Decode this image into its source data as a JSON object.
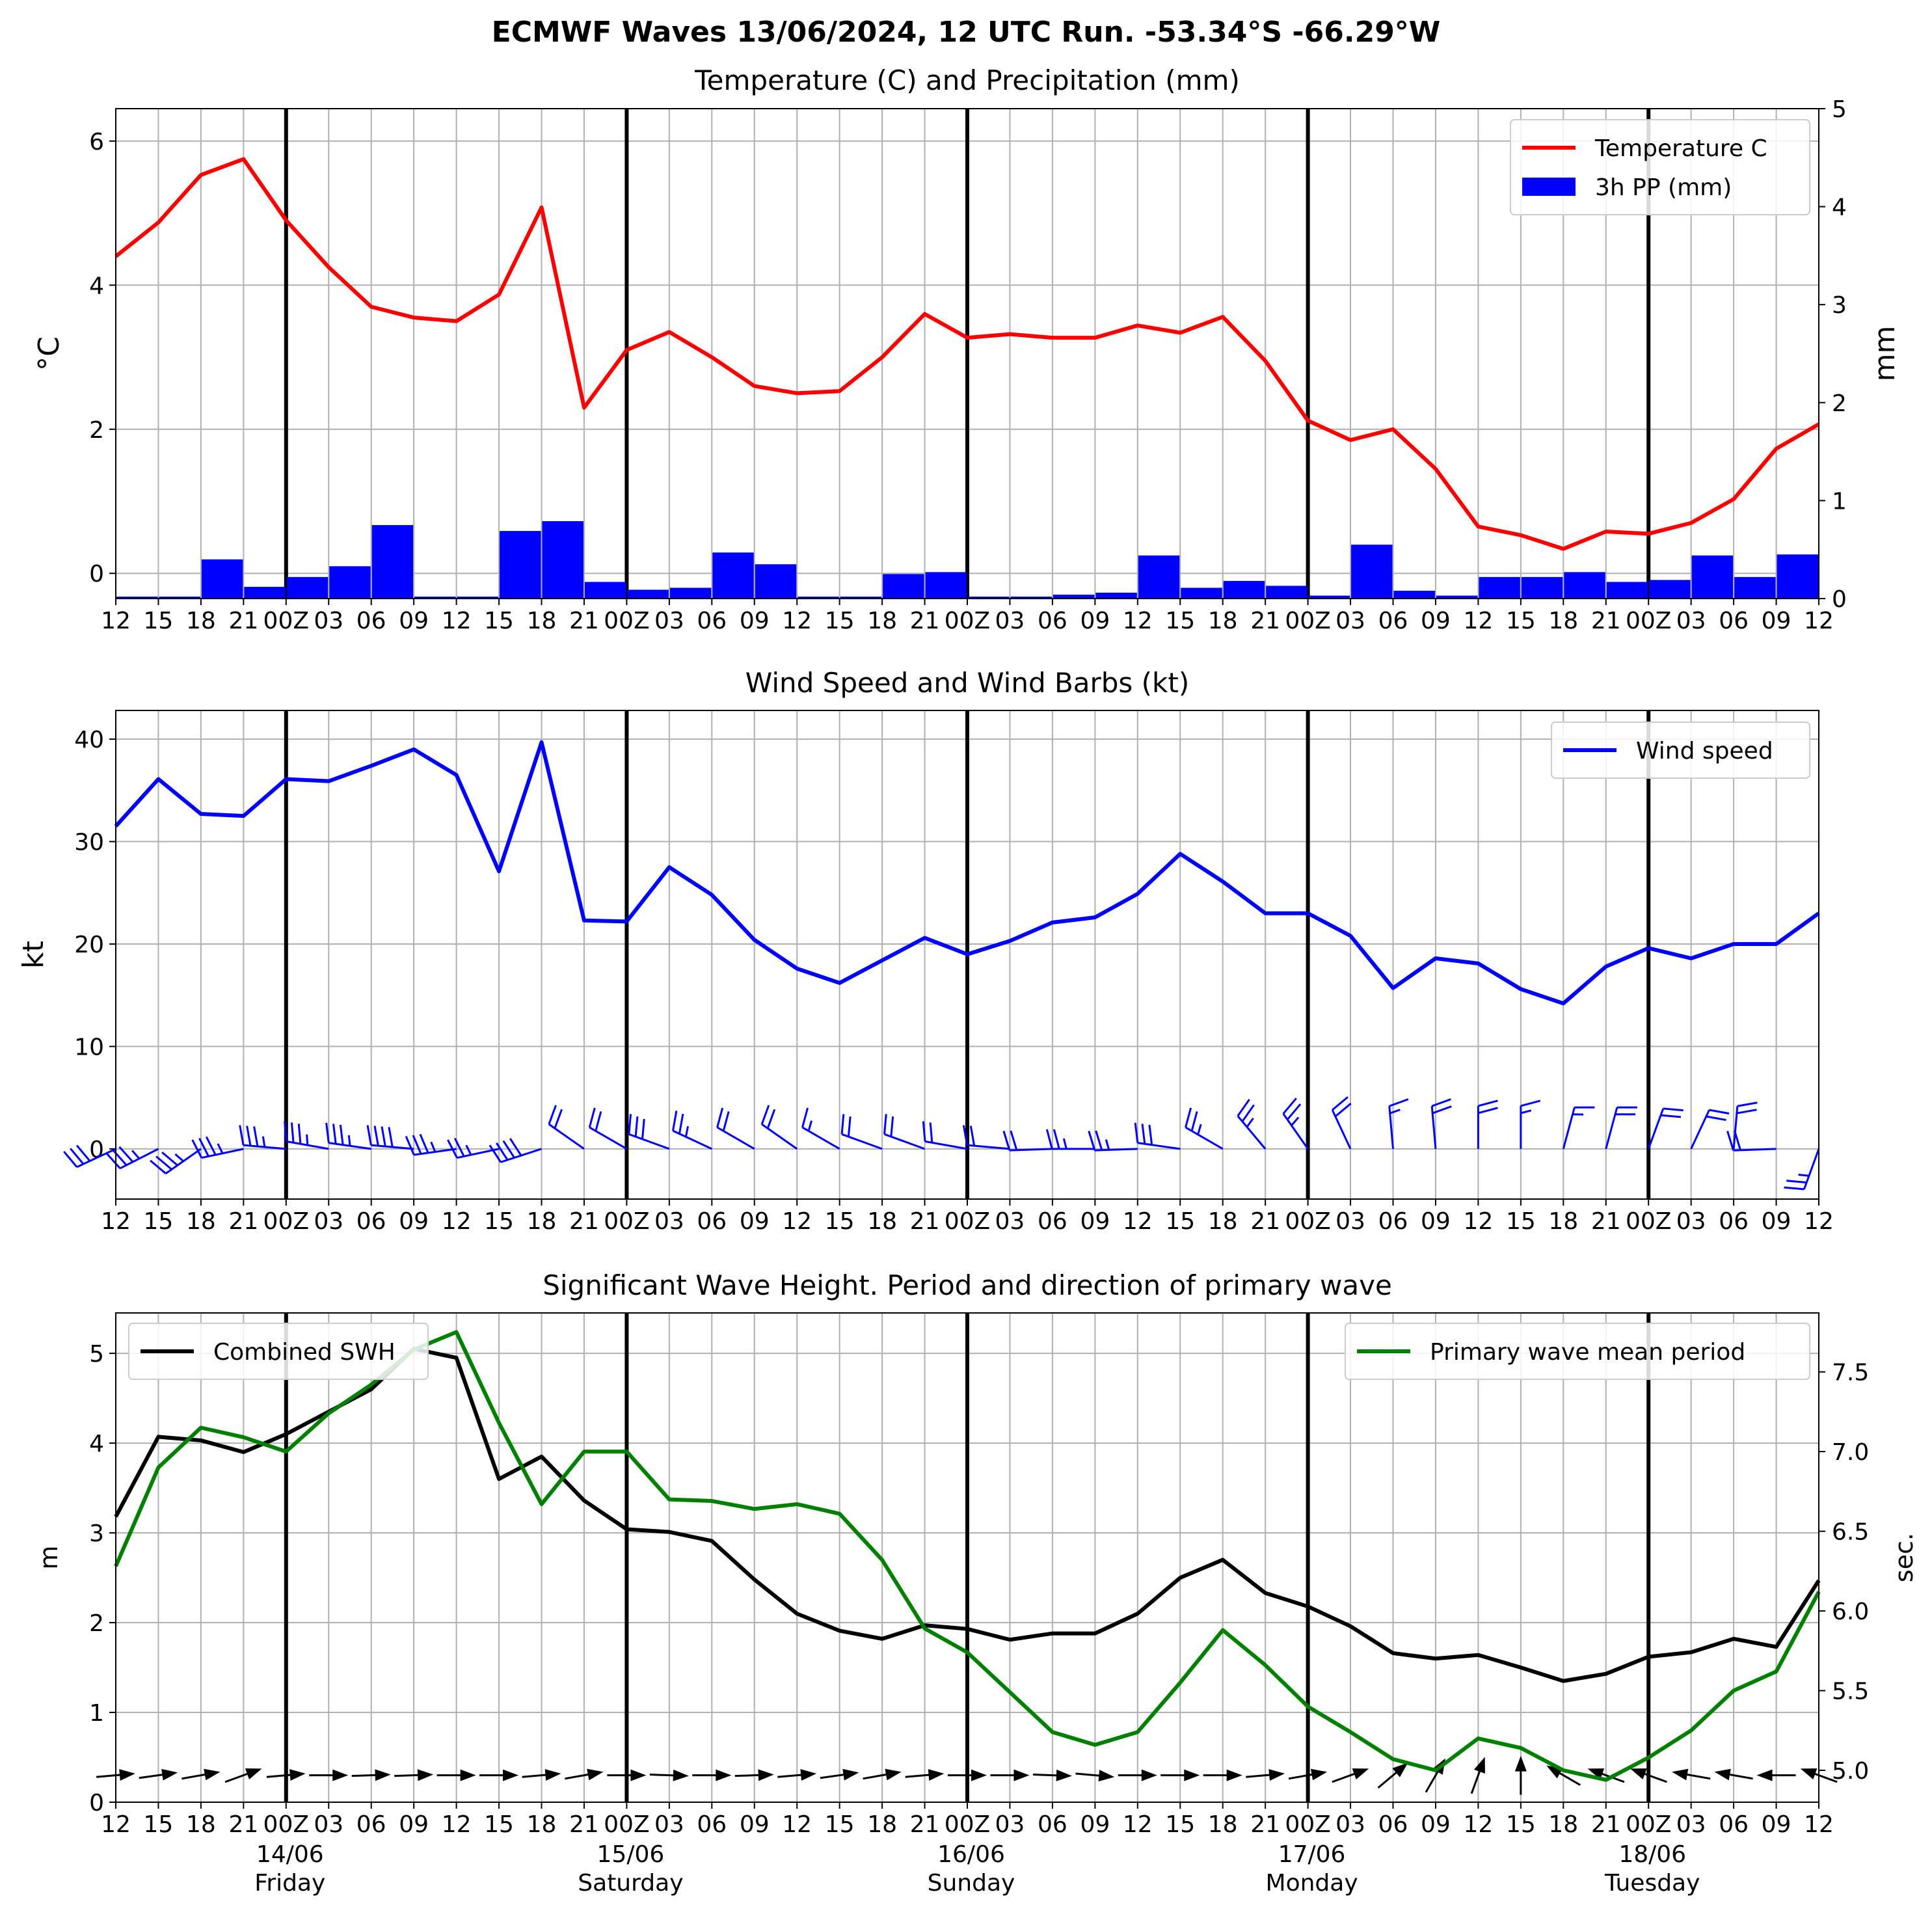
{
  "suptitle": "ECMWF Waves 13/06/2024, 12 UTC Run. -53.34°S -66.29°W",
  "colors": {
    "temperature": "#ff0000",
    "precip": "#0000ff",
    "wind": "#0000ff",
    "swh": "#000000",
    "period": "#008000",
    "grid": "#b0b0b0"
  },
  "time_ticks": [
    "12",
    "15",
    "18",
    "21",
    "00Z",
    "03",
    "06",
    "09",
    "12",
    "15",
    "18",
    "21",
    "00Z",
    "03",
    "06",
    "09",
    "12",
    "15",
    "18",
    "21",
    "00Z",
    "03",
    "06",
    "09",
    "12",
    "15",
    "18",
    "21",
    "00Z",
    "03",
    "06",
    "09",
    "12",
    "15",
    "18",
    "21",
    "00Z",
    "03",
    "06",
    "09",
    "12"
  ],
  "day_labels": [
    {
      "date": "14/06",
      "day": "Friday"
    },
    {
      "date": "15/06",
      "day": "Saturday"
    },
    {
      "date": "16/06",
      "day": "Sunday"
    },
    {
      "date": "17/06",
      "day": "Monday"
    },
    {
      "date": "18/06",
      "day": "Tuesday"
    }
  ],
  "chart_data": [
    {
      "type": "line",
      "title": "Temperature (C) and Precipitation (mm)",
      "ylabel": "°C",
      "ylabel_right": "mm",
      "ylim": [
        -0.35,
        6.45
      ],
      "ylim_right": [
        0,
        5
      ],
      "yticks": [
        0,
        2,
        4,
        6
      ],
      "yticks_right": [
        0,
        1,
        2,
        3,
        4,
        5
      ],
      "legend": "top-right",
      "series": [
        {
          "name": "Temperature C",
          "kind": "line",
          "axis": "left",
          "values": [
            4.4,
            4.87,
            5.53,
            5.75,
            4.9,
            4.25,
            3.7,
            3.55,
            3.5,
            3.87,
            5.08,
            2.3,
            3.1,
            3.35,
            3.0,
            2.6,
            2.5,
            2.53,
            3.0,
            3.6,
            3.27,
            3.32,
            3.27,
            3.27,
            3.44,
            3.34,
            3.56,
            2.95,
            2.12,
            1.85,
            2.0,
            1.45,
            0.65,
            0.53,
            0.34,
            0.58,
            0.55,
            0.7,
            1.03,
            1.73,
            2.07
          ]
        },
        {
          "name": "3h PP (mm)",
          "kind": "bar",
          "axis": "right",
          "values": [
            0.02,
            0.02,
            0.4,
            0.12,
            0.22,
            0.33,
            0.75,
            0.02,
            0.02,
            0.69,
            0.79,
            0.17,
            0.09,
            0.11,
            0.47,
            0.35,
            0.02,
            0.02,
            0.25,
            0.27,
            0.02,
            0.02,
            0.04,
            0.06,
            0.44,
            0.11,
            0.18,
            0.13,
            0.03,
            0.55,
            0.08,
            0.03,
            0.22,
            0.22,
            0.27,
            0.17,
            0.19,
            0.44,
            0.22,
            0.45
          ]
        }
      ]
    },
    {
      "type": "line",
      "title": "Wind Speed and Wind Barbs (kt)",
      "ylabel": "kt",
      "ylim": [
        -4.9,
        42.8
      ],
      "yticks": [
        0,
        10,
        20,
        30,
        40
      ],
      "legend": "top-right",
      "series": [
        {
          "name": "Wind speed",
          "values": [
            31.5,
            36.1,
            32.7,
            32.5,
            36.1,
            35.9,
            37.4,
            39.0,
            36.5,
            27.1,
            39.7,
            22.3,
            22.2,
            27.5,
            24.8,
            20.4,
            17.6,
            16.2,
            18.4,
            20.6,
            19.0,
            20.3,
            22.1,
            22.6,
            24.9,
            28.8,
            26.1,
            23.0,
            23.0,
            20.8,
            15.7,
            18.6,
            18.1,
            15.6,
            14.2,
            17.8,
            19.6,
            18.6,
            20.0,
            20.0,
            23.0
          ]
        }
      ],
      "barbs_from_deg": [
        245,
        243,
        235,
        258,
        275,
        280,
        278,
        275,
        262,
        258,
        252,
        305,
        300,
        290,
        295,
        300,
        305,
        300,
        290,
        290,
        280,
        275,
        268,
        270,
        268,
        278,
        300,
        320,
        325,
        335,
        355,
        355,
        0,
        360,
        15,
        15,
        20,
        25,
        5,
        268,
        200
      ]
    },
    {
      "type": "line",
      "title": "Significant Wave Height. Period and direction of primary wave",
      "ylabel": "m",
      "ylabel_right": "sec.",
      "ylim": [
        0,
        5.45
      ],
      "ylim_right": [
        4.8,
        7.87
      ],
      "yticks": [
        0,
        1,
        2,
        3,
        4,
        5
      ],
      "yticks_right": [
        5.0,
        5.5,
        6.0,
        6.5,
        7.0,
        7.5
      ],
      "series": [
        {
          "name": "Combined SWH",
          "axis": "left",
          "legend": "top-left",
          "values": [
            3.18,
            4.07,
            4.03,
            3.9,
            4.1,
            4.35,
            4.6,
            5.05,
            4.95,
            3.6,
            3.85,
            3.36,
            3.04,
            3.01,
            2.91,
            2.48,
            2.1,
            1.91,
            1.82,
            1.97,
            1.93,
            1.81,
            1.88,
            1.88,
            2.1,
            2.5,
            2.7,
            2.33,
            2.18,
            1.96,
            1.66,
            1.6,
            1.64,
            1.5,
            1.35,
            1.43,
            1.62,
            1.67,
            1.82,
            1.73,
            2.47
          ]
        },
        {
          "name": "Primary wave mean period",
          "axis": "right",
          "legend": "top-right",
          "values": [
            6.28,
            6.9,
            7.15,
            7.09,
            7.0,
            7.24,
            7.42,
            7.64,
            7.75,
            7.18,
            6.67,
            7.0,
            7.0,
            6.7,
            6.69,
            6.64,
            6.67,
            6.61,
            6.32,
            5.89,
            5.74,
            5.49,
            5.24,
            5.16,
            5.24,
            5.55,
            5.88,
            5.66,
            5.4,
            5.24,
            5.07,
            5.0,
            5.2,
            5.14,
            5.0,
            4.94,
            5.08,
            5.25,
            5.5,
            5.62,
            6.12
          ]
        }
      ],
      "wave_dir_from_deg": [
        265,
        262,
        260,
        250,
        265,
        270,
        268,
        268,
        270,
        270,
        265,
        260,
        270,
        272,
        270,
        268,
        265,
        262,
        260,
        265,
        270,
        270,
        272,
        275,
        270,
        270,
        270,
        265,
        260,
        250,
        230,
        210,
        200,
        180,
        120,
        110,
        110,
        100,
        100,
        90,
        110
      ]
    }
  ]
}
